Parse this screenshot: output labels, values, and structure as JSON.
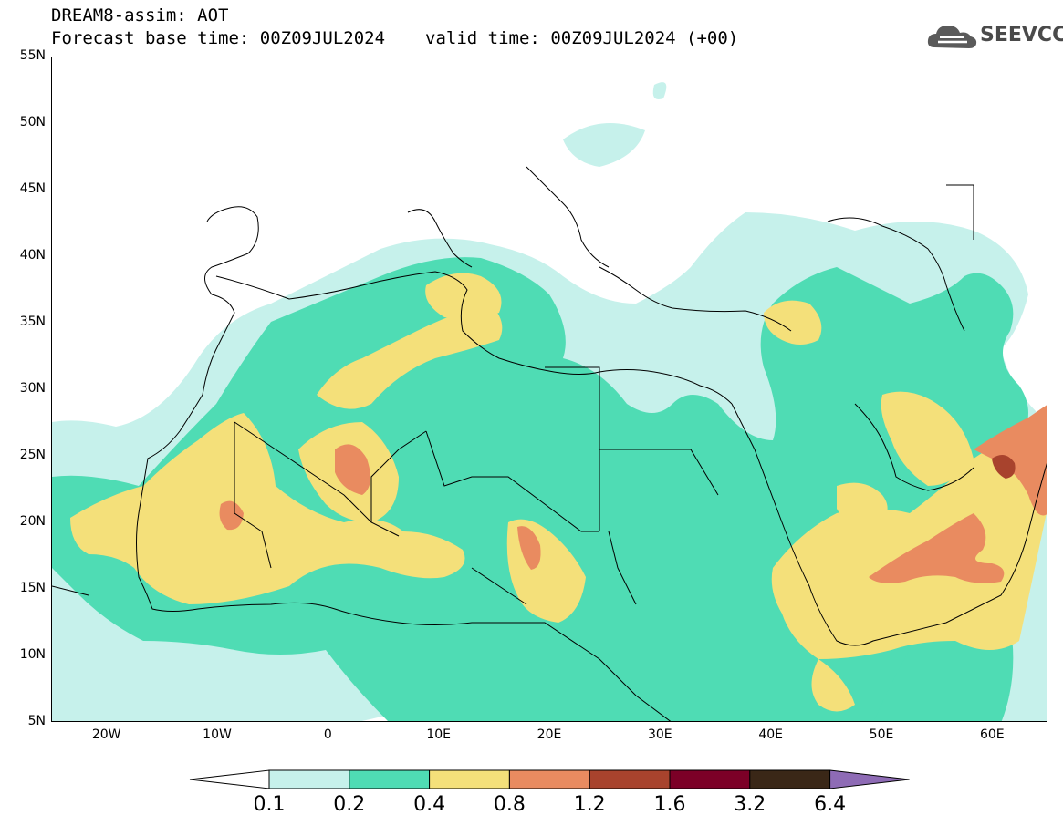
{
  "header": {
    "title": "DREAM8-assim: AOT",
    "forecast_base": "Forecast base time: 00Z09JUL2024",
    "valid_time": "valid time: 00Z09JUL2024 (+00)"
  },
  "logo": {
    "text": "SEEVCCC",
    "icon": "cloud-icon"
  },
  "map": {
    "lat_labels": [
      "55N",
      "50N",
      "45N",
      "40N",
      "35N",
      "30N",
      "25N",
      "20N",
      "15N",
      "10N",
      "5N"
    ],
    "lon_labels": [
      "20W",
      "10W",
      "0",
      "10E",
      "20E",
      "30E",
      "40E",
      "50E",
      "60E"
    ],
    "lat_range": [
      5,
      55
    ],
    "lon_range": [
      -25,
      65
    ]
  },
  "legend": {
    "labels": [
      "0.1",
      "0.2",
      "0.4",
      "0.8",
      "1.2",
      "1.6",
      "3.2",
      "6.4"
    ],
    "colors": [
      "#ffffff",
      "#c6f1eb",
      "#4fdcb4",
      "#f4e07a",
      "#e98b60",
      "#a8432d",
      "#7c0027",
      "#3a2717",
      "#8e6bb5"
    ]
  },
  "colors": {
    "very_low": "#c6f1eb",
    "low": "#4fdcb4",
    "moderate": "#f4e07a",
    "high": "#e98b60",
    "very_high": "#a8432d"
  }
}
